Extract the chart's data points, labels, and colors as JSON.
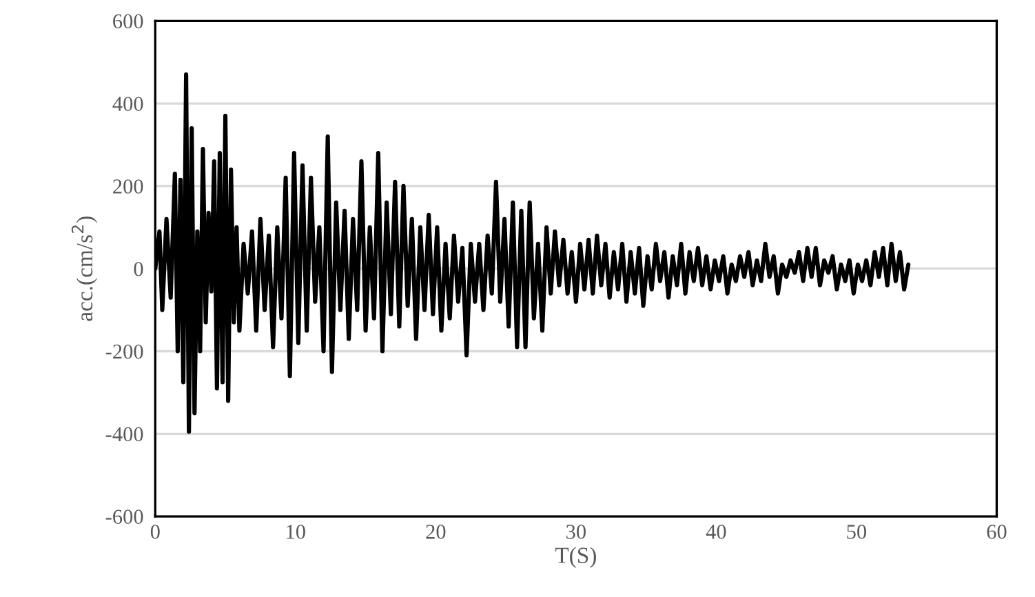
{
  "chart_data": {
    "type": "line",
    "xlabel": "T(S)",
    "ylabel": "acc.(cm/s$^{2}$)",
    "xlim": [
      0,
      60
    ],
    "xticks": [
      0,
      10,
      20,
      30,
      40,
      50,
      60
    ],
    "ylim": [
      -600,
      600
    ],
    "yticks": [
      -600,
      -400,
      -200,
      0,
      200,
      400,
      600
    ],
    "grid": "y",
    "marker": "none",
    "line_style": "solid",
    "series": [
      {
        "color": "#000000",
        "x": [
          0,
          0.3,
          0.5,
          0.8,
          1.1,
          1.4,
          1.6,
          1.8,
          2.0,
          2.2,
          2.4,
          2.6,
          2.8,
          3.0,
          3.2,
          3.4,
          3.6,
          3.8,
          4.0,
          4.2,
          4.4,
          4.6,
          4.8,
          5.0,
          5.2,
          5.4,
          5.6,
          5.8,
          6.0,
          6.3,
          6.6,
          6.9,
          7.2,
          7.5,
          7.8,
          8.1,
          8.4,
          8.7,
          9.0,
          9.3,
          9.6,
          9.9,
          10.2,
          10.5,
          10.8,
          11.1,
          11.4,
          11.7,
          12.0,
          12.3,
          12.6,
          12.9,
          13.2,
          13.5,
          13.8,
          14.1,
          14.4,
          14.7,
          15.0,
          15.3,
          15.6,
          15.9,
          16.2,
          16.5,
          16.8,
          17.1,
          17.4,
          17.7,
          18.0,
          18.3,
          18.6,
          18.9,
          19.2,
          19.5,
          19.8,
          20.1,
          20.4,
          20.7,
          21.0,
          21.3,
          21.6,
          21.9,
          22.2,
          22.5,
          22.8,
          23.1,
          23.4,
          23.7,
          24.0,
          24.3,
          24.6,
          24.9,
          25.2,
          25.5,
          25.8,
          26.1,
          26.4,
          26.7,
          27.0,
          27.3,
          27.6,
          27.9,
          28.2,
          28.5,
          28.8,
          29.1,
          29.4,
          29.7,
          30.0,
          30.3,
          30.6,
          30.9,
          31.2,
          31.5,
          31.8,
          32.1,
          32.4,
          32.7,
          33.0,
          33.3,
          33.6,
          33.9,
          34.2,
          34.5,
          34.8,
          35.1,
          35.4,
          35.7,
          36.0,
          36.3,
          36.6,
          36.9,
          37.2,
          37.5,
          37.8,
          38.1,
          38.4,
          38.7,
          39.0,
          39.3,
          39.6,
          39.9,
          40.2,
          40.5,
          40.8,
          41.1,
          41.4,
          41.7,
          42.0,
          42.3,
          42.6,
          42.9,
          43.2,
          43.5,
          43.8,
          44.1,
          44.4,
          44.7,
          45.0,
          45.3,
          45.6,
          45.9,
          46.2,
          46.5,
          46.8,
          47.1,
          47.4,
          47.7,
          48.0,
          48.3,
          48.6,
          48.9,
          49.2,
          49.5,
          49.8,
          50.1,
          50.4,
          50.7,
          51.0,
          51.3,
          51.6,
          51.9,
          52.2,
          52.5,
          52.8,
          53.1,
          53.4,
          53.7
        ],
        "values": [
          0,
          90,
          -100,
          120,
          -70,
          230,
          -200,
          215,
          -275,
          470,
          -395,
          340,
          -350,
          90,
          -200,
          290,
          -130,
          135,
          -55,
          260,
          -290,
          280,
          -275,
          370,
          -320,
          240,
          -130,
          100,
          -150,
          60,
          -60,
          90,
          -150,
          120,
          -100,
          80,
          -190,
          100,
          -120,
          220,
          -260,
          280,
          -180,
          250,
          -150,
          220,
          -80,
          100,
          -200,
          320,
          -250,
          160,
          -100,
          140,
          -170,
          120,
          -100,
          260,
          -150,
          100,
          -120,
          280,
          -200,
          160,
          -110,
          210,
          -140,
          200,
          -90,
          120,
          -170,
          100,
          -100,
          130,
          -110,
          100,
          -150,
          60,
          -120,
          80,
          -80,
          50,
          -210,
          60,
          -80,
          60,
          -100,
          80,
          -60,
          210,
          -80,
          120,
          -140,
          160,
          -190,
          140,
          -190,
          160,
          -120,
          60,
          -150,
          100,
          -60,
          90,
          -40,
          70,
          -60,
          40,
          -80,
          60,
          -50,
          70,
          -60,
          80,
          -40,
          60,
          -70,
          40,
          -50,
          60,
          -80,
          40,
          -60,
          50,
          -90,
          30,
          -50,
          60,
          -30,
          40,
          -70,
          30,
          -40,
          60,
          -60,
          40,
          -30,
          50,
          -40,
          30,
          -50,
          20,
          -30,
          30,
          -60,
          10,
          -30,
          30,
          -20,
          40,
          -40,
          20,
          -30,
          60,
          -20,
          30,
          -60,
          10,
          -20,
          20,
          -10,
          40,
          -30,
          50,
          -20,
          50,
          -40,
          20,
          -10,
          30,
          -50,
          10,
          -30,
          20,
          -60,
          10,
          -30,
          20,
          -40,
          40,
          -20,
          50,
          -40,
          60,
          -30,
          40,
          -50,
          10
        ]
      }
    ]
  }
}
